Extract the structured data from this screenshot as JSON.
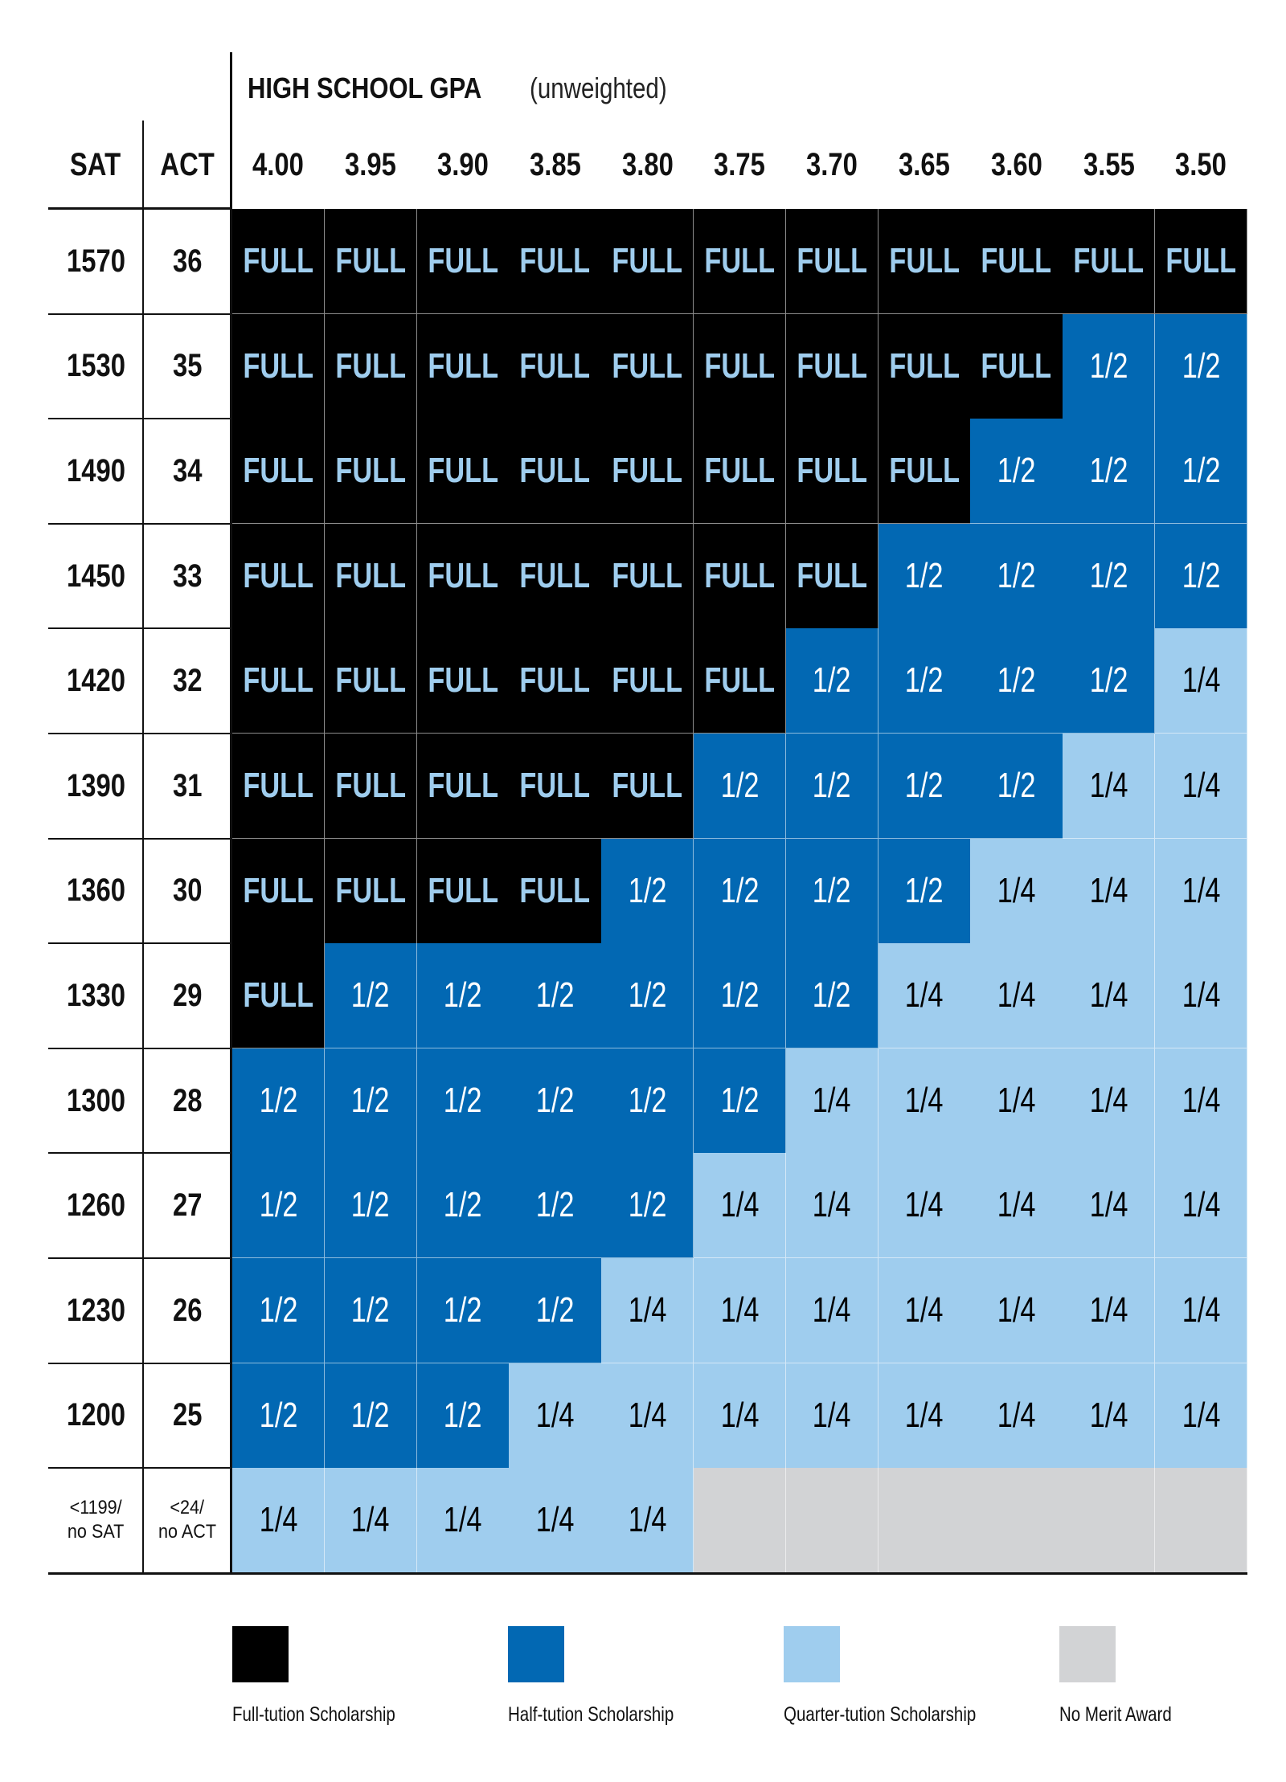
{
  "header": {
    "gpa_title": "HIGH SCHOOL GPA",
    "gpa_subtitle": "(unweighted)",
    "sat_label": "SAT",
    "act_label": "ACT",
    "gpa_columns": [
      "4.00",
      "3.95",
      "3.90",
      "3.85",
      "3.80",
      "3.75",
      "3.70",
      "3.65",
      "3.60",
      "3.55",
      "3.50"
    ]
  },
  "rows": [
    {
      "sat": "1570",
      "act": "36",
      "cells": [
        "FULL",
        "FULL",
        "FULL",
        "FULL",
        "FULL",
        "FULL",
        "FULL",
        "FULL",
        "FULL",
        "FULL",
        "FULL"
      ]
    },
    {
      "sat": "1530",
      "act": "35",
      "cells": [
        "FULL",
        "FULL",
        "FULL",
        "FULL",
        "FULL",
        "FULL",
        "FULL",
        "FULL",
        "FULL",
        "1/2",
        "1/2"
      ]
    },
    {
      "sat": "1490",
      "act": "34",
      "cells": [
        "FULL",
        "FULL",
        "FULL",
        "FULL",
        "FULL",
        "FULL",
        "FULL",
        "FULL",
        "1/2",
        "1/2",
        "1/2"
      ]
    },
    {
      "sat": "1450",
      "act": "33",
      "cells": [
        "FULL",
        "FULL",
        "FULL",
        "FULL",
        "FULL",
        "FULL",
        "FULL",
        "1/2",
        "1/2",
        "1/2",
        "1/2"
      ]
    },
    {
      "sat": "1420",
      "act": "32",
      "cells": [
        "FULL",
        "FULL",
        "FULL",
        "FULL",
        "FULL",
        "FULL",
        "1/2",
        "1/2",
        "1/2",
        "1/2",
        "1/4"
      ]
    },
    {
      "sat": "1390",
      "act": "31",
      "cells": [
        "FULL",
        "FULL",
        "FULL",
        "FULL",
        "FULL",
        "1/2",
        "1/2",
        "1/2",
        "1/2",
        "1/4",
        "1/4"
      ]
    },
    {
      "sat": "1360",
      "act": "30",
      "cells": [
        "FULL",
        "FULL",
        "FULL",
        "FULL",
        "1/2",
        "1/2",
        "1/2",
        "1/2",
        "1/4",
        "1/4",
        "1/4"
      ]
    },
    {
      "sat": "1330",
      "act": "29",
      "cells": [
        "FULL",
        "1/2",
        "1/2",
        "1/2",
        "1/2",
        "1/2",
        "1/2",
        "1/4",
        "1/4",
        "1/4",
        "1/4"
      ]
    },
    {
      "sat": "1300",
      "act": "28",
      "cells": [
        "1/2",
        "1/2",
        "1/2",
        "1/2",
        "1/2",
        "1/2",
        "1/4",
        "1/4",
        "1/4",
        "1/4",
        "1/4"
      ]
    },
    {
      "sat": "1260",
      "act": "27",
      "cells": [
        "1/2",
        "1/2",
        "1/2",
        "1/2",
        "1/2",
        "1/4",
        "1/4",
        "1/4",
        "1/4",
        "1/4",
        "1/4"
      ]
    },
    {
      "sat": "1230",
      "act": "26",
      "cells": [
        "1/2",
        "1/2",
        "1/2",
        "1/2",
        "1/4",
        "1/4",
        "1/4",
        "1/4",
        "1/4",
        "1/4",
        "1/4"
      ]
    },
    {
      "sat": "1200",
      "act": "25",
      "cells": [
        "1/2",
        "1/2",
        "1/2",
        "1/4",
        "1/4",
        "1/4",
        "1/4",
        "1/4",
        "1/4",
        "1/4",
        "1/4"
      ]
    },
    {
      "sat": "<1199/\nno SAT",
      "act": "<24/\nno ACT",
      "cells": [
        "1/4",
        "1/4",
        "1/4",
        "1/4",
        "1/4",
        "",
        "",
        "",
        "",
        "",
        ""
      ]
    }
  ],
  "legend": [
    {
      "key": "full",
      "label": "Full-tution Scholarship",
      "color": "#000000"
    },
    {
      "key": "half",
      "label": "Half-tution Scholarship",
      "color": "#0268B3"
    },
    {
      "key": "quarter",
      "label": "Quarter-tution Scholarship",
      "color": "#9FCDEE"
    },
    {
      "key": "none",
      "label": "No Merit Award",
      "color": "#D2D3D5"
    }
  ],
  "colors": {
    "full_bg": "#000000",
    "full_text": "#9FCDEE",
    "half_bg": "#0268B3",
    "half_text": "#FFFFFF",
    "quarter_bg": "#9FCDEE",
    "quarter_text": "#000000",
    "none_bg": "#D2D3D5"
  }
}
